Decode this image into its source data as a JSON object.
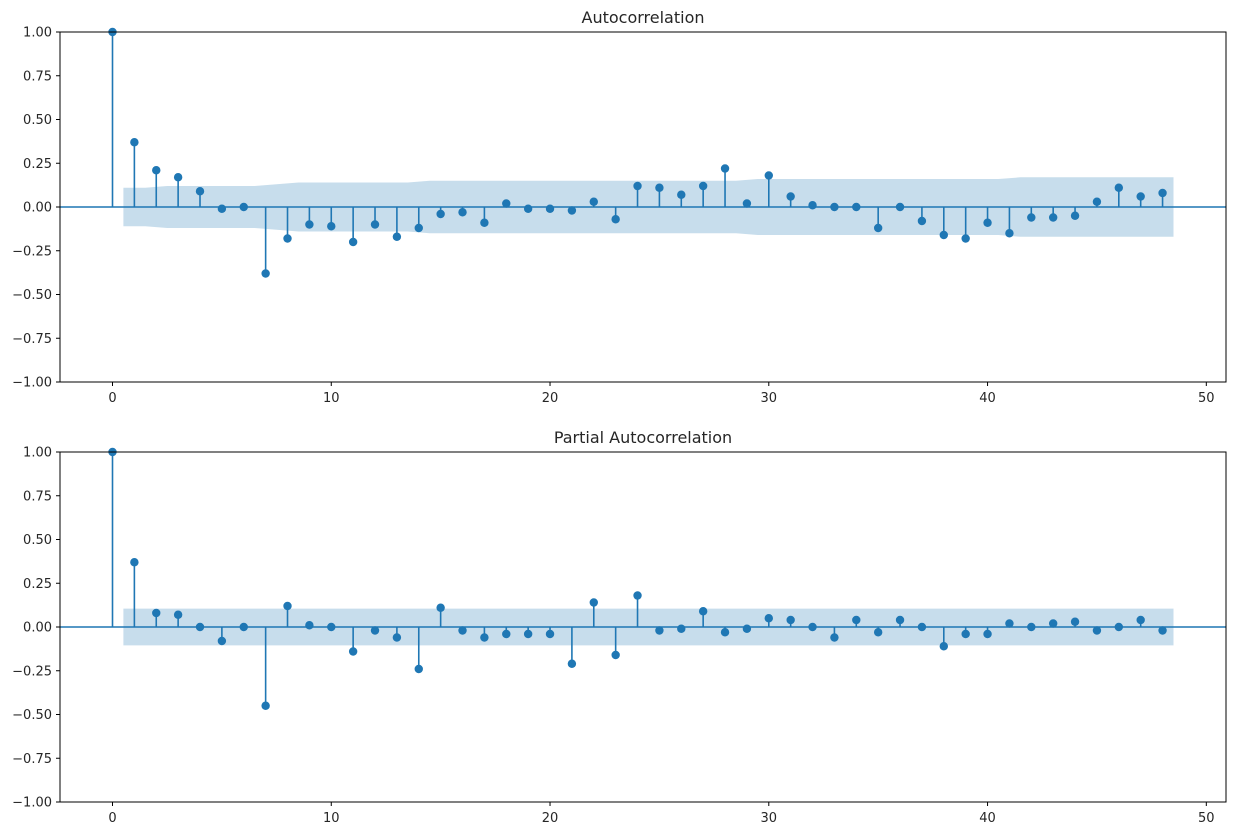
{
  "colors": {
    "stem": "#1f77b4",
    "confidence_band": "#1f77b4",
    "axes": "#000000",
    "text": "#262626"
  },
  "chart_data": [
    {
      "type": "stem",
      "title": "Autocorrelation",
      "xlabel": "",
      "ylabel": "",
      "xlim": [
        -2.4,
        50.9
      ],
      "ylim": [
        -1.0,
        1.0
      ],
      "xticks": [
        0,
        10,
        20,
        30,
        40,
        50
      ],
      "yticks": [
        1.0,
        0.75,
        0.5,
        0.25,
        0.0,
        -0.25,
        -0.5,
        -0.75,
        -1.0
      ],
      "ytick_labels": [
        "1.00",
        "0.75",
        "0.50",
        "0.25",
        "0.00",
        "−0.25",
        "−0.50",
        "−0.75",
        "−1.00"
      ],
      "grid": false,
      "lags": [
        0,
        1,
        2,
        3,
        4,
        5,
        6,
        7,
        8,
        9,
        10,
        11,
        12,
        13,
        14,
        15,
        16,
        17,
        18,
        19,
        20,
        21,
        22,
        23,
        24,
        25,
        26,
        27,
        28,
        29,
        30,
        31,
        32,
        33,
        34,
        35,
        36,
        37,
        38,
        39,
        40,
        41,
        42,
        43,
        44,
        45,
        46,
        47,
        48
      ],
      "values": [
        1.0,
        0.37,
        0.21,
        0.17,
        0.09,
        -0.01,
        0.0,
        -0.38,
        -0.18,
        -0.1,
        -0.11,
        -0.2,
        -0.1,
        -0.17,
        -0.12,
        -0.04,
        -0.03,
        -0.09,
        0.02,
        -0.01,
        -0.01,
        -0.02,
        0.03,
        -0.07,
        0.12,
        0.11,
        0.07,
        0.12,
        0.22,
        0.02,
        0.18,
        0.06,
        0.01,
        0.0,
        0.0,
        -0.12,
        0.0,
        -0.08,
        -0.16,
        -0.18,
        -0.09,
        -0.15,
        -0.06,
        -0.06,
        -0.05,
        0.03,
        0.11,
        0.06,
        0.08
      ],
      "confidence_band": {
        "x_start": 0.5,
        "x_end": 48.5,
        "upper": [
          0.11,
          0.11,
          0.12,
          0.12,
          0.12,
          0.12,
          0.12,
          0.13,
          0.14,
          0.14,
          0.14,
          0.14,
          0.14,
          0.14,
          0.15,
          0.15,
          0.15,
          0.15,
          0.15,
          0.15,
          0.15,
          0.15,
          0.15,
          0.15,
          0.15,
          0.15,
          0.15,
          0.15,
          0.15,
          0.16,
          0.16,
          0.16,
          0.16,
          0.16,
          0.16,
          0.16,
          0.16,
          0.16,
          0.16,
          0.16,
          0.16,
          0.17,
          0.17,
          0.17,
          0.17,
          0.17,
          0.17,
          0.17,
          0.17
        ]
      }
    },
    {
      "type": "stem",
      "title": "Partial Autocorrelation",
      "xlabel": "",
      "ylabel": "",
      "xlim": [
        -2.4,
        50.9
      ],
      "ylim": [
        -1.0,
        1.0
      ],
      "xticks": [
        0,
        10,
        20,
        30,
        40,
        50
      ],
      "yticks": [
        1.0,
        0.75,
        0.5,
        0.25,
        0.0,
        -0.25,
        -0.5,
        -0.75,
        -1.0
      ],
      "ytick_labels": [
        "1.00",
        "0.75",
        "0.50",
        "0.25",
        "0.00",
        "−0.25",
        "−0.50",
        "−0.75",
        "−1.00"
      ],
      "grid": false,
      "lags": [
        0,
        1,
        2,
        3,
        4,
        5,
        6,
        7,
        8,
        9,
        10,
        11,
        12,
        13,
        14,
        15,
        16,
        17,
        18,
        19,
        20,
        21,
        22,
        23,
        24,
        25,
        26,
        27,
        28,
        29,
        30,
        31,
        32,
        33,
        34,
        35,
        36,
        37,
        38,
        39,
        40,
        41,
        42,
        43,
        44,
        45,
        46,
        47,
        48
      ],
      "values": [
        1.0,
        0.37,
        0.08,
        0.07,
        0.0,
        -0.08,
        0.0,
        -0.45,
        0.12,
        0.01,
        0.0,
        -0.14,
        -0.02,
        -0.06,
        -0.24,
        0.11,
        -0.02,
        -0.06,
        -0.04,
        -0.04,
        -0.04,
        -0.21,
        0.14,
        -0.16,
        0.18,
        -0.02,
        -0.01,
        0.09,
        -0.03,
        -0.01,
        0.05,
        0.04,
        0.0,
        -0.06,
        0.04,
        -0.03,
        0.04,
        0.0,
        -0.11,
        -0.04,
        -0.04,
        0.02,
        0.0,
        0.02,
        0.03,
        -0.02,
        0.0,
        0.04,
        -0.02
      ],
      "confidence_band": {
        "x_start": 0.5,
        "x_end": 48.5,
        "upper": [
          0.105,
          0.105,
          0.105,
          0.105,
          0.105,
          0.105,
          0.105,
          0.105,
          0.105,
          0.105,
          0.105,
          0.105,
          0.105,
          0.105,
          0.105,
          0.105,
          0.105,
          0.105,
          0.105,
          0.105,
          0.105,
          0.105,
          0.105,
          0.105,
          0.105,
          0.105,
          0.105,
          0.105,
          0.105,
          0.105,
          0.105,
          0.105,
          0.105,
          0.105,
          0.105,
          0.105,
          0.105,
          0.105,
          0.105,
          0.105,
          0.105,
          0.105,
          0.105,
          0.105,
          0.105,
          0.105,
          0.105,
          0.105,
          0.105
        ]
      }
    }
  ]
}
